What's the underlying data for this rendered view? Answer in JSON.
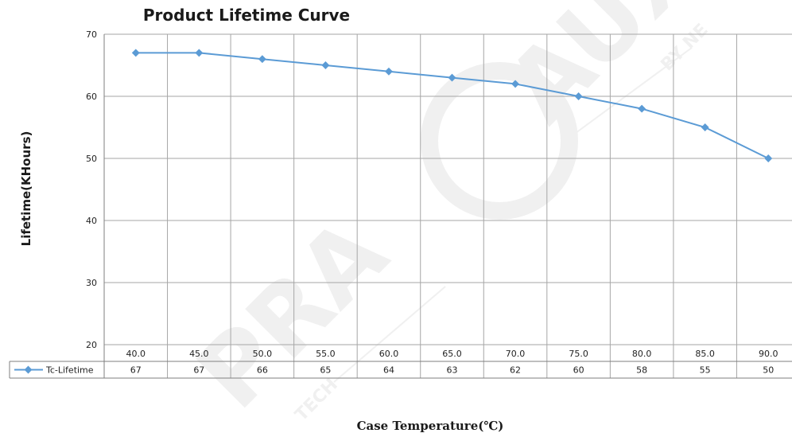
{
  "chart_data": {
    "type": "line",
    "title": "Product Lifetime Curve",
    "xlabel": "Case Temperature(℃)",
    "ylabel": "Lifetime(KHours)",
    "categories": [
      "40.0",
      "45.0",
      "50.0",
      "55.0",
      "60.0",
      "65.0",
      "70.0",
      "75.0",
      "80.0",
      "85.0",
      "90.0"
    ],
    "series": [
      {
        "name": "Tc-Lifetime",
        "values": [
          67,
          67,
          66,
          65,
          64,
          63,
          62,
          60,
          58,
          55,
          50
        ],
        "color": "#5b9bd5"
      }
    ],
    "ylim": [
      20,
      70
    ],
    "yticks": [
      20,
      30,
      40,
      50,
      60,
      70
    ],
    "grid": true,
    "legend": "data-table-left"
  },
  "watermark": {
    "brand": "AUXIS",
    "brand_prefix": "PRA",
    "tagline_top": "BY NE",
    "tagline_bottom": "TECH"
  }
}
